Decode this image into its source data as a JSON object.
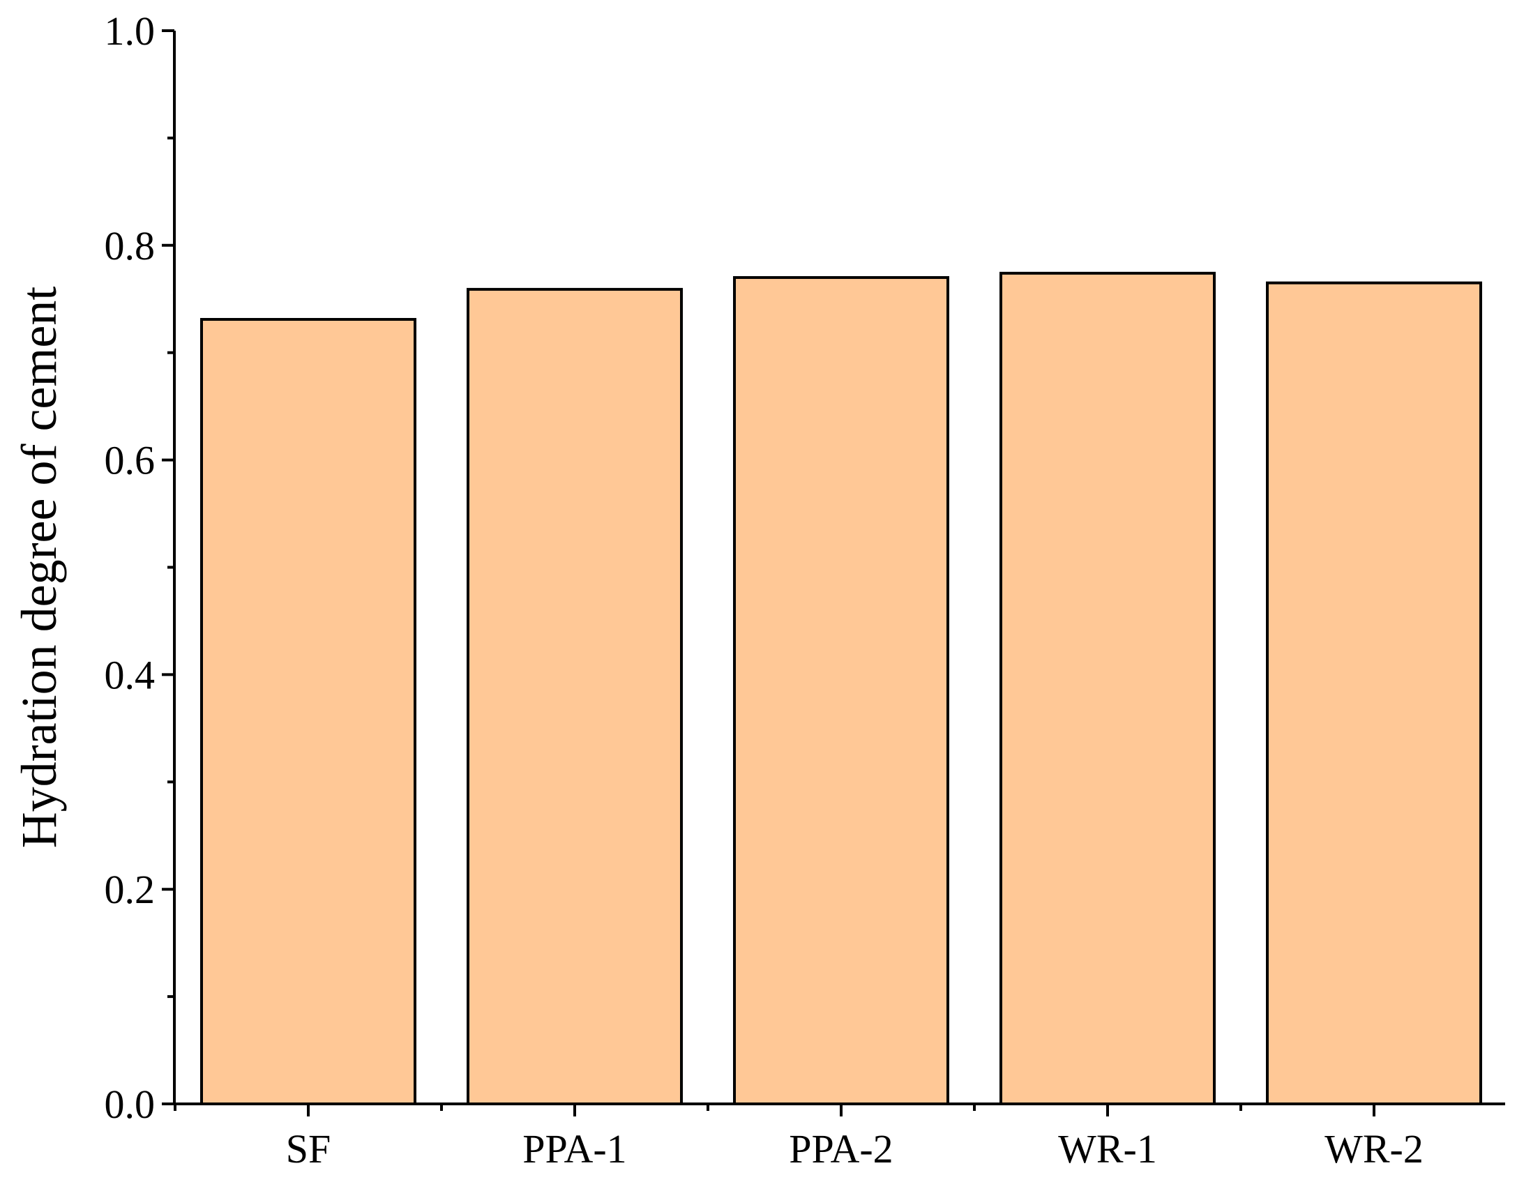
{
  "chart_data": {
    "type": "bar",
    "title": "",
    "xlabel": "",
    "ylabel": "Hydration degree of cement",
    "categories": [
      "SF",
      "PPA-1",
      "PPA-2",
      "WR-1",
      "WR-2"
    ],
    "values": [
      0.731,
      0.759,
      0.77,
      0.774,
      0.765
    ],
    "ylim": [
      0.0,
      1.0
    ],
    "yticks": [
      0.0,
      0.2,
      0.4,
      0.6,
      0.8,
      1.0
    ],
    "ytick_labels": [
      "0.0",
      "0.2",
      "0.4",
      "0.6",
      "0.8",
      "1.0"
    ],
    "grid": false,
    "legend": "none",
    "bar_color": "#FFC896",
    "edge_color": "#000000"
  }
}
